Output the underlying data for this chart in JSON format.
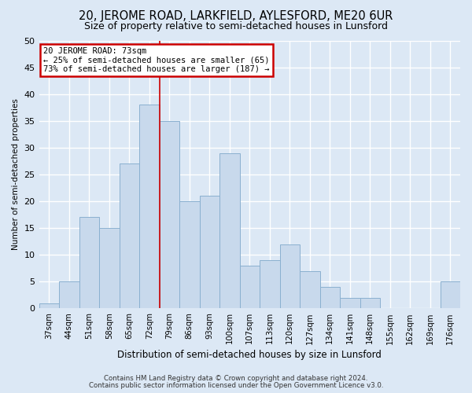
{
  "title": "20, JEROME ROAD, LARKFIELD, AYLESFORD, ME20 6UR",
  "subtitle": "Size of property relative to semi-detached houses in Lunsford",
  "xlabel": "Distribution of semi-detached houses by size in Lunsford",
  "ylabel": "Number of semi-detached properties",
  "bar_labels": [
    "37sqm",
    "44sqm",
    "51sqm",
    "58sqm",
    "65sqm",
    "72sqm",
    "79sqm",
    "86sqm",
    "93sqm",
    "100sqm",
    "107sqm",
    "113sqm",
    "120sqm",
    "127sqm",
    "134sqm",
    "141sqm",
    "148sqm",
    "155sqm",
    "162sqm",
    "169sqm",
    "176sqm"
  ],
  "bar_values": [
    1,
    5,
    17,
    15,
    27,
    38,
    35,
    20,
    21,
    29,
    8,
    9,
    12,
    7,
    4,
    2,
    2,
    0,
    0,
    0,
    5
  ],
  "bar_color": "#c8d9ec",
  "bar_edge_color": "#8ab0d0",
  "vline_x_index": 6,
  "subject_label": "20 JEROME ROAD: 73sqm",
  "annotation_smaller": "← 25% of semi-detached houses are smaller (65)",
  "annotation_larger": "73% of semi-detached houses are larger (187) →",
  "annotation_box_facecolor": "#ffffff",
  "annotation_box_edgecolor": "#cc0000",
  "vline_color": "#cc0000",
  "ylim": [
    0,
    50
  ],
  "yticks": [
    0,
    5,
    10,
    15,
    20,
    25,
    30,
    35,
    40,
    45,
    50
  ],
  "footer1": "Contains HM Land Registry data © Crown copyright and database right 2024.",
  "footer2": "Contains public sector information licensed under the Open Government Licence v3.0.",
  "background_color": "#dce8f5",
  "plot_background_color": "#dce8f5",
  "grid_color": "#ffffff",
  "title_fontsize": 10.5,
  "subtitle_fontsize": 9
}
